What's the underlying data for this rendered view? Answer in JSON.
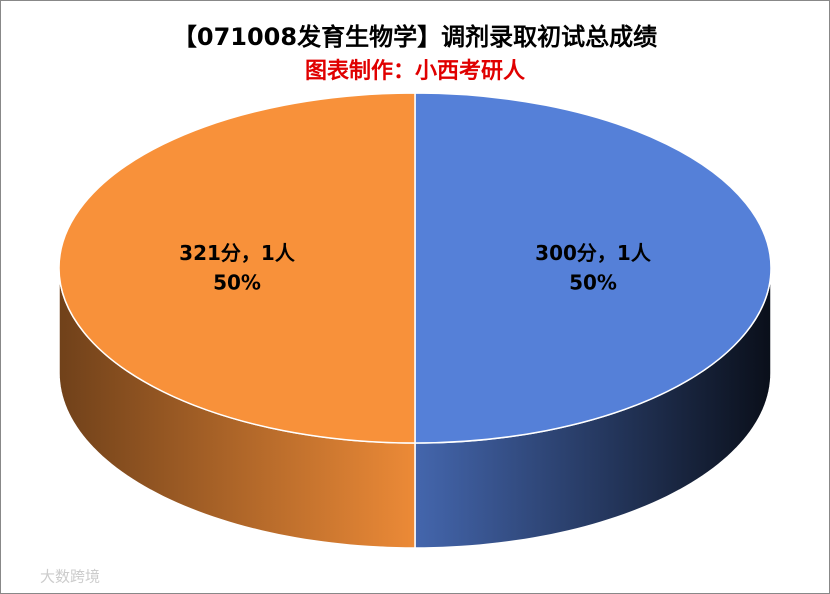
{
  "chart_data": {
    "type": "pie3d",
    "title": "【071008发育生物学】调剂录取初试总成绩",
    "subtitle": "图表制作：小西考研人",
    "categories": [
      "300分",
      "321分"
    ],
    "values": [
      1,
      1
    ],
    "value_labels": [
      "1人",
      "1人"
    ],
    "percents": [
      50,
      50
    ],
    "percent_labels": [
      "50%",
      "50%"
    ],
    "label_separator": "，",
    "colors": [
      "#5580d8",
      "#f8913a"
    ],
    "watermark": "大数跨境"
  }
}
